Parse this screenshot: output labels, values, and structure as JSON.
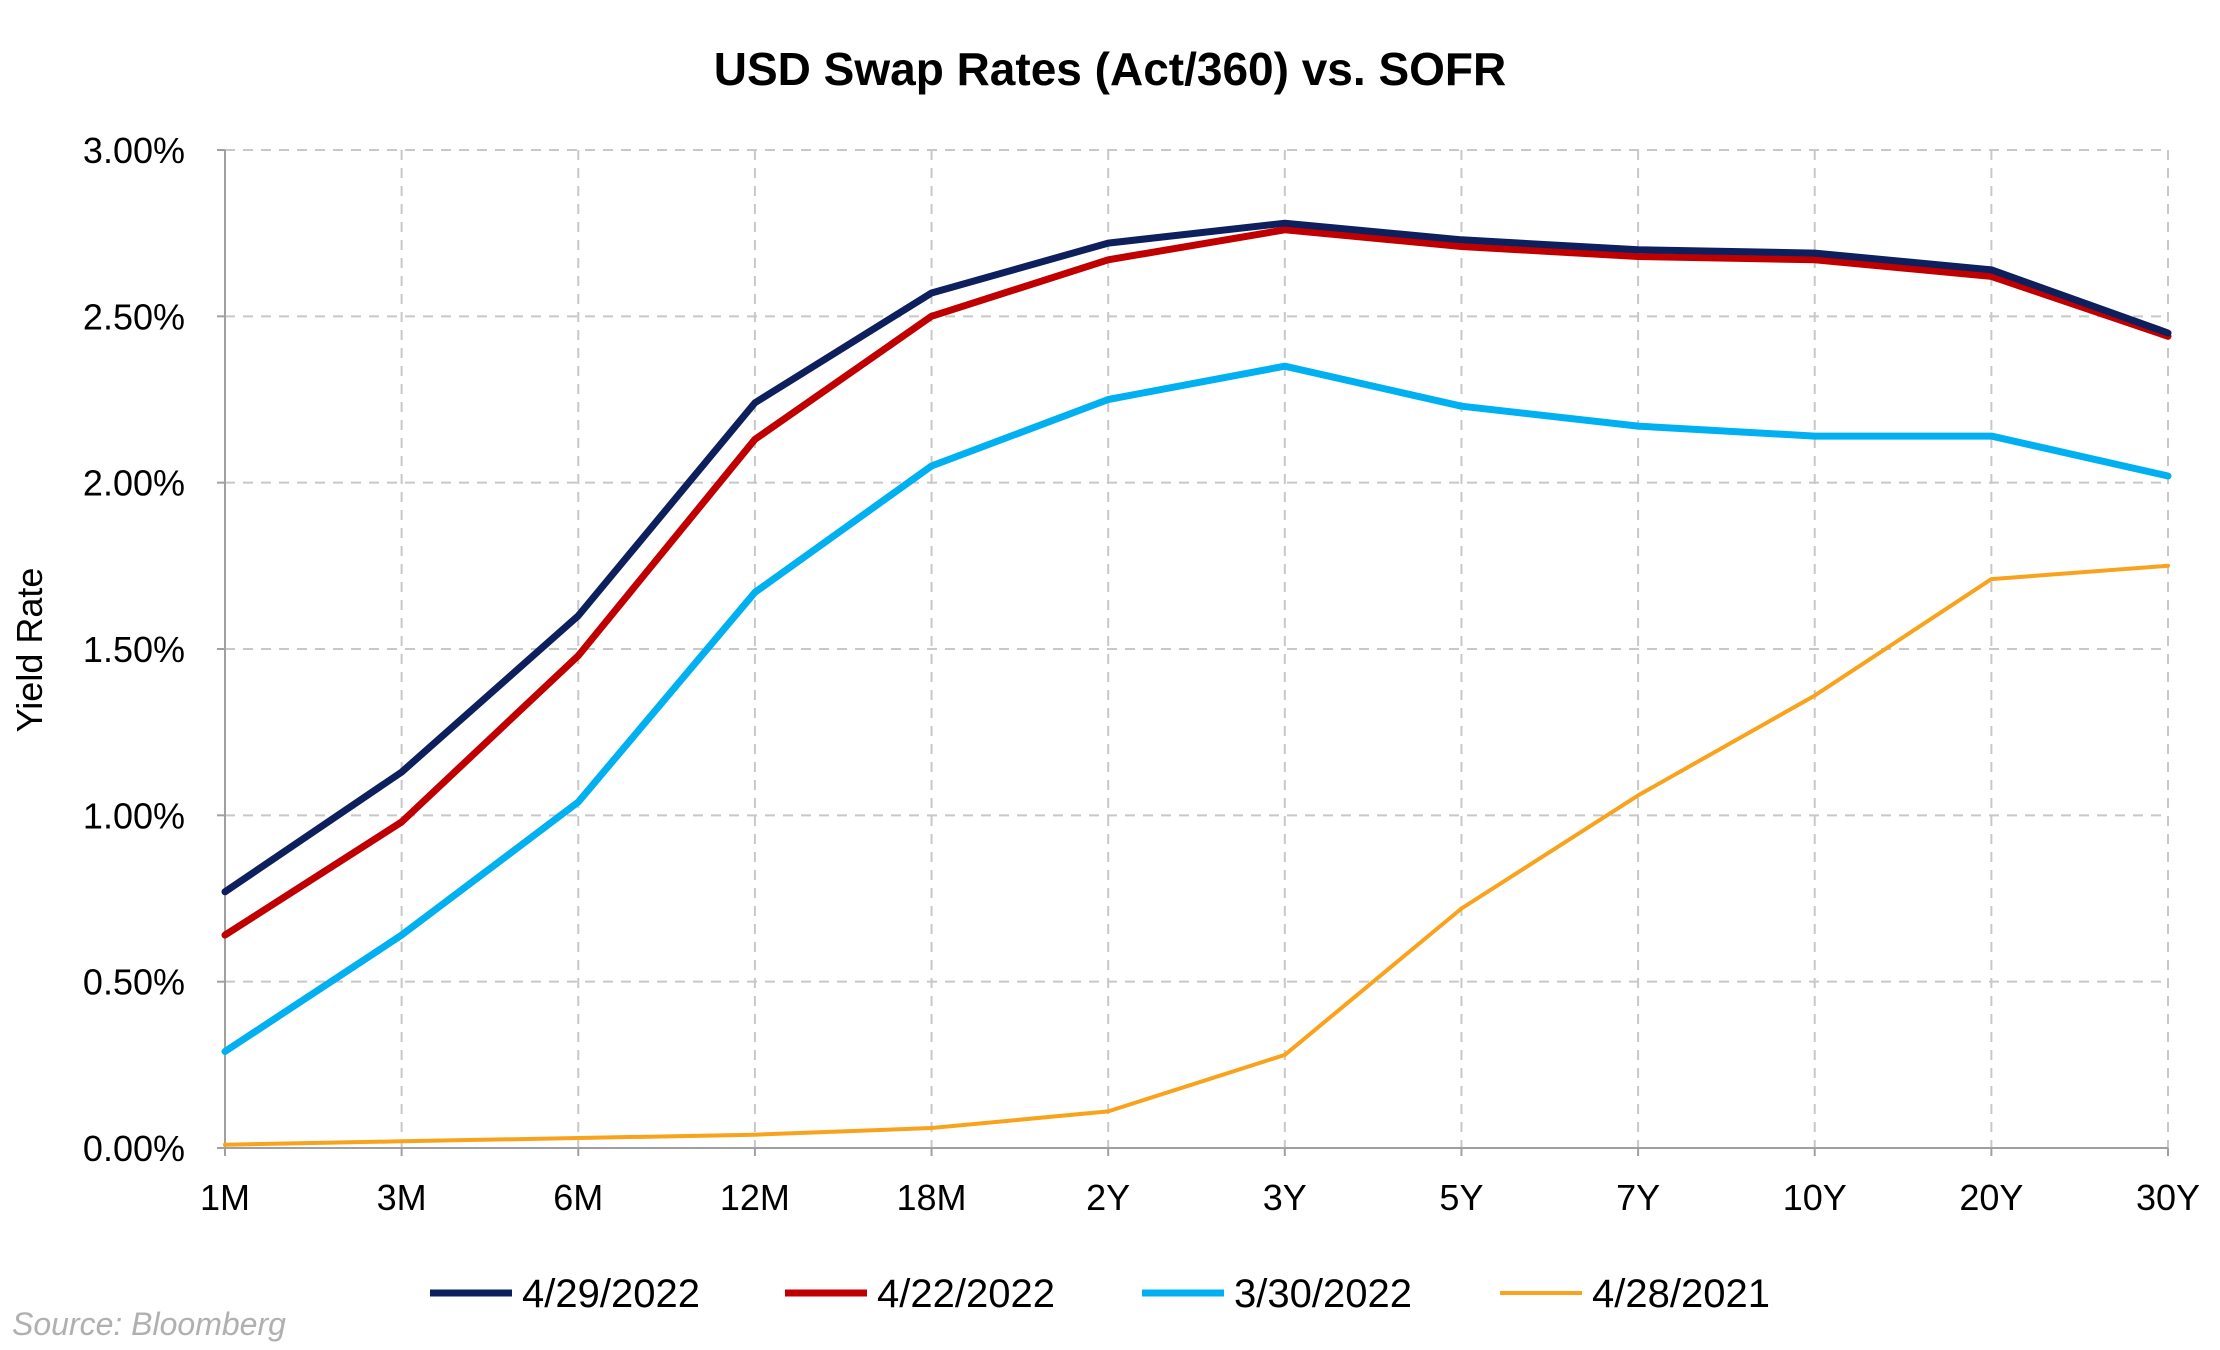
{
  "chart_data": {
    "type": "line",
    "title": "USD Swap Rates (Act/360) vs. SOFR",
    "ylabel": "Yield Rate",
    "xlabel": "",
    "categories": [
      "1M",
      "3M",
      "6M",
      "12M",
      "18M",
      "2Y",
      "3Y",
      "5Y",
      "7Y",
      "10Y",
      "20Y",
      "30Y"
    ],
    "ylim": [
      0,
      3
    ],
    "yticks": [
      0,
      0.5,
      1,
      1.5,
      2,
      2.5,
      3
    ],
    "ytick_labels": [
      "0.00%",
      "0.50%",
      "1.00%",
      "1.50%",
      "2.00%",
      "2.50%",
      "3.00%"
    ],
    "grid": true,
    "legend_position": "bottom",
    "series": [
      {
        "name": "4/29/2022",
        "color": "#0d1f5c",
        "values": [
          0.77,
          1.13,
          1.6,
          2.24,
          2.57,
          2.72,
          2.78,
          2.73,
          2.7,
          2.69,
          2.64,
          2.45
        ]
      },
      {
        "name": "4/22/2022",
        "color": "#c00000",
        "values": [
          0.64,
          0.98,
          1.48,
          2.13,
          2.5,
          2.67,
          2.76,
          2.71,
          2.68,
          2.67,
          2.62,
          2.44
        ]
      },
      {
        "name": "3/30/2022",
        "color": "#00b0f0",
        "values": [
          0.29,
          0.64,
          1.04,
          1.67,
          2.05,
          2.25,
          2.35,
          2.23,
          2.17,
          2.14,
          2.14,
          2.02
        ]
      },
      {
        "name": "4/28/2021",
        "color": "#f9a21b",
        "values": [
          0.01,
          0.02,
          0.03,
          0.04,
          0.06,
          0.11,
          0.28,
          0.72,
          1.06,
          1.36,
          1.71,
          1.75
        ]
      }
    ]
  },
  "footer": {
    "source": "Source: Bloomberg"
  }
}
